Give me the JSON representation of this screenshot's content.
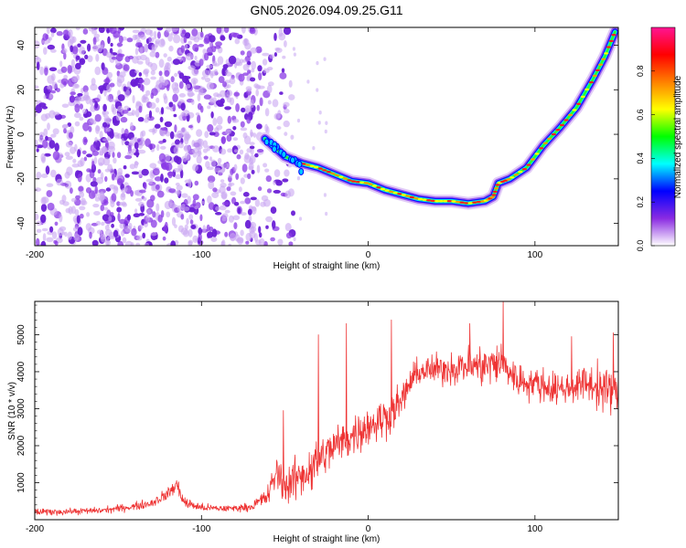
{
  "figure": {
    "title": "GN05.2026.094.09.25.G11"
  },
  "chart_data": [
    {
      "type": "heatmap",
      "title": "GN05.2026.094.09.25.G11",
      "xlabel": "Height of straight line (km)",
      "ylabel": "Frequency (Hz)",
      "xlim": [
        -200,
        150
      ],
      "ylim": [
        -50,
        48
      ],
      "x_ticks": [
        -200,
        -100,
        0,
        100
      ],
      "y_ticks": [
        -40,
        -20,
        0,
        20,
        40
      ],
      "colorbar": {
        "label": "Normalized spectral amplitude",
        "range": [
          0,
          1
        ],
        "ticks": [
          0.0,
          0.2,
          0.4,
          0.6,
          0.8
        ],
        "tick_labels": [
          "0.0",
          "0.2",
          "0.4",
          "0.6",
          "0.8"
        ],
        "colormap": [
          "#ffffff",
          "#8a2be2",
          "#0000ff",
          "#00ffff",
          "#00ff00",
          "#ffff00",
          "#ff8000",
          "#ff0000",
          "#ff1493"
        ]
      },
      "noise_region": {
        "x_from": -200,
        "x_to": -45,
        "dominant_color": "#7b2be0"
      },
      "ridge": {
        "description": "dispersion curve",
        "points": [
          {
            "x": -62,
            "y": -2
          },
          {
            "x": -50,
            "y": -10
          },
          {
            "x": -40,
            "y": -13
          },
          {
            "x": -30,
            "y": -15
          },
          {
            "x": -20,
            "y": -18
          },
          {
            "x": -10,
            "y": -21
          },
          {
            "x": 0,
            "y": -22
          },
          {
            "x": 10,
            "y": -25
          },
          {
            "x": 20,
            "y": -27
          },
          {
            "x": 30,
            "y": -29
          },
          {
            "x": 40,
            "y": -30
          },
          {
            "x": 50,
            "y": -30
          },
          {
            "x": 60,
            "y": -31
          },
          {
            "x": 70,
            "y": -30
          },
          {
            "x": 75,
            "y": -28
          },
          {
            "x": 78,
            "y": -22
          },
          {
            "x": 85,
            "y": -20
          },
          {
            "x": 95,
            "y": -15
          },
          {
            "x": 105,
            "y": -5
          },
          {
            "x": 115,
            "y": 3
          },
          {
            "x": 125,
            "y": 12
          },
          {
            "x": 135,
            "y": 25
          },
          {
            "x": 142,
            "y": 35
          },
          {
            "x": 148,
            "y": 46
          }
        ]
      }
    },
    {
      "type": "line",
      "xlabel": "Height of straight line (km)",
      "ylabel": "SNR (10 * v/v)",
      "xlim": [
        -200,
        150
      ],
      "ylim": [
        0,
        5900
      ],
      "x_ticks": [
        -200,
        -100,
        0,
        100
      ],
      "y_ticks": [
        1000,
        2000,
        3000,
        4000,
        5000
      ],
      "series": [
        {
          "name": "SNR",
          "color": "#ee3333",
          "envelope": {
            "x": [
              -200,
              -180,
              -160,
              -150,
              -140,
              -130,
              -120,
              -115,
              -110,
              -100,
              -90,
              -80,
              -70,
              -60,
              -55,
              -50,
              -45,
              -40,
              -35,
              -30,
              -25,
              -20,
              -10,
              0,
              10,
              20,
              25,
              30,
              40,
              50,
              60,
              70,
              80,
              90,
              100,
              110,
              120,
              130,
              140,
              150
            ],
            "mean": [
              200,
              220,
              250,
              300,
              360,
              450,
              700,
              950,
              450,
              330,
              300,
              310,
              350,
              650,
              1300,
              900,
              1050,
              1200,
              1350,
              1600,
              1800,
              2000,
              2250,
              2550,
              2750,
              3200,
              3700,
              4000,
              4050,
              4100,
              4150,
              4150,
              4250,
              3750,
              3700,
              3550,
              3550,
              3700,
              3550,
              3450
            ],
            "amplitude": [
              120,
              100,
              110,
              120,
              130,
              160,
              200,
              300,
              200,
              130,
              110,
              110,
              130,
              350,
              600,
              600,
              700,
              700,
              800,
              800,
              700,
              650,
              650,
              700,
              700,
              550,
              500,
              450,
              500,
              550,
              600,
              700,
              700,
              550,
              550,
              550,
              500,
              550,
              800,
              600
            ]
          },
          "spikes": [
            {
              "x": -30,
              "y": 5000
            },
            {
              "x": -51,
              "y": 2950
            },
            {
              "x": -13,
              "y": 5300
            },
            {
              "x": 14,
              "y": 5400
            },
            {
              "x": 61,
              "y": 5300
            },
            {
              "x": 81,
              "y": 5880
            },
            {
              "x": 122,
              "y": 4950
            },
            {
              "x": 147,
              "y": 5050
            }
          ]
        }
      ]
    }
  ]
}
